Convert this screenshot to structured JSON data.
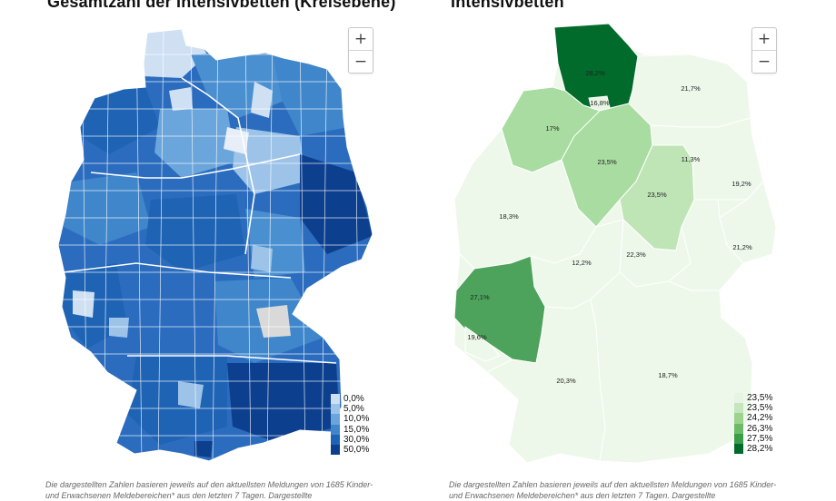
{
  "left_panel": {
    "title": "Gesamtzahl der Intensivbetten (Kreisebene)",
    "zoom_in_label": "+",
    "zoom_out_label": "−",
    "legend": [
      {
        "label": "0,0%",
        "color": "#cfe0f3"
      },
      {
        "label": "5,0%",
        "color": "#9dc3e8"
      },
      {
        "label": "10,0%",
        "color": "#6aa5db"
      },
      {
        "label": "15,0%",
        "color": "#3f86cb"
      },
      {
        "label": "30,0%",
        "color": "#1e63b4"
      },
      {
        "label": "50,0%",
        "color": "#0d3f8f"
      }
    ],
    "note": "Die dargestellten Zahlen basieren jeweils auf den aktuellsten Meldungen von 1685 Kinder- und Erwachsenen Meldebereichen* aus den letzten 7 Tagen. Dargestellte"
  },
  "right_panel": {
    "title": "Intensivbetten",
    "zoom_in_label": "+",
    "zoom_out_label": "−",
    "legend": [
      {
        "label": "23,5%",
        "color": "#e6f4e2"
      },
      {
        "label": "23,5%",
        "color": "#c5e6bd"
      },
      {
        "label": "24,2%",
        "color": "#9bd38f"
      },
      {
        "label": "26,3%",
        "color": "#6cbc67"
      },
      {
        "label": "27,5%",
        "color": "#3a9d48"
      },
      {
        "label": "28,2%",
        "color": "#006b2a"
      }
    ],
    "states": [
      {
        "label": "28,2%",
        "color": "#006b2a"
      },
      {
        "label": "16,8%",
        "color": "#e9f6e5"
      },
      {
        "label": "21,7%",
        "color": "#edf8ea"
      },
      {
        "label": "17%",
        "color": "#a8dca0"
      },
      {
        "label": "23,5%",
        "color": "#a8dca0"
      },
      {
        "label": "23,5%",
        "color": "#bfe5b6"
      },
      {
        "label": "11,3%",
        "color": "#edf8ea"
      },
      {
        "label": "21,2%",
        "color": "#edf8ea"
      },
      {
        "label": "18,3%",
        "color": "#edf8ea"
      },
      {
        "label": "12,2%",
        "color": "#edf8ea"
      },
      {
        "label": "22,3%",
        "color": "#edf8ea"
      },
      {
        "label": "19,2%",
        "color": "#edf8ea"
      },
      {
        "label": "27,1%",
        "color": "#4da35b"
      },
      {
        "label": "19,6%",
        "color": "#edf8ea"
      },
      {
        "label": "20,3%",
        "color": "#edf8ea"
      },
      {
        "label": "18,7%",
        "color": "#edf8ea"
      }
    ],
    "note": "Die dargestellten Zahlen basieren jeweils auf den aktuellsten Meldungen von 1685 Kinder- und Erwachsenen Meldebereichen* aus den letzten 7 Tagen. Dargestellte"
  }
}
